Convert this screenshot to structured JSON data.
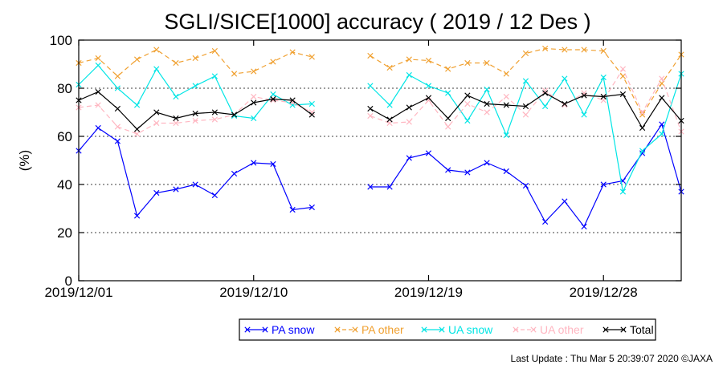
{
  "chart_data": {
    "type": "line",
    "title": "SGLI/SICE[1000] accuracy ( 2019 / 12 Des )",
    "ylabel": "(%)",
    "xlabel": "",
    "ylim": [
      0,
      100
    ],
    "yticks": [
      "0",
      "20",
      "40",
      "60",
      "80",
      "100"
    ],
    "xlim": [
      1,
      32
    ],
    "xticks": [
      {
        "day": 1,
        "label": "2019/12/01"
      },
      {
        "day": 10,
        "label": "2019/12/10"
      },
      {
        "day": 19,
        "label": "2019/12/19"
      },
      {
        "day": 28,
        "label": "2019/12/28"
      }
    ],
    "grid": "horizontal-dotted",
    "legend_position": "bottom",
    "footer": "Last Update : Thu Mar  5 20:39:07 2020  ©JAXA",
    "x": [
      1,
      2,
      3,
      4,
      5,
      6,
      7,
      8,
      9,
      10,
      11,
      12,
      13,
      14,
      15,
      16,
      17,
      18,
      19,
      20,
      21,
      22,
      23,
      24,
      25,
      26,
      27,
      28,
      29,
      30,
      31,
      32
    ],
    "series": [
      {
        "name": "PA snow",
        "color": "#0000ff",
        "dashed": false,
        "values": [
          54,
          63.5,
          58,
          27,
          36.5,
          38,
          40,
          35.5,
          44.5,
          49,
          48.5,
          29.5,
          30.5,
          null,
          null,
          39,
          39,
          51,
          53,
          46,
          45,
          49,
          45.5,
          39.5,
          24.5,
          33,
          22.5,
          40,
          41.5,
          53,
          65,
          37
        ]
      },
      {
        "name": "PA other",
        "color": "#f0a030",
        "dashed": true,
        "values": [
          90.5,
          92.5,
          85,
          92,
          96,
          90.5,
          92.5,
          95.5,
          86,
          87,
          91,
          95,
          93,
          null,
          null,
          93.5,
          88.5,
          92,
          91.5,
          88,
          90.5,
          90.5,
          86,
          94.5,
          96.5,
          96,
          96,
          95.5,
          85,
          69,
          82,
          94
        ]
      },
      {
        "name": "UA snow",
        "color": "#00e5e5",
        "dashed": false,
        "values": [
          81.5,
          89.5,
          80,
          73,
          88,
          76.5,
          81,
          85,
          68.5,
          67.5,
          77.5,
          73,
          73.5,
          null,
          null,
          81,
          73,
          85.5,
          81,
          78,
          66.5,
          79.5,
          60.5,
          83,
          72.5,
          84,
          69,
          84.5,
          37,
          54,
          61,
          86
        ]
      },
      {
        "name": "UA other",
        "color": "#ffb6c1",
        "dashed": true,
        "values": [
          72,
          73,
          64,
          61,
          65.5,
          65.5,
          66.5,
          67,
          69,
          76.5,
          75,
          74,
          70,
          null,
          null,
          68.5,
          65.5,
          66,
          75,
          64,
          73.5,
          70,
          76.5,
          69,
          79,
          73,
          78,
          75,
          88,
          70,
          84,
          62
        ]
      },
      {
        "name": "Total",
        "color": "#000000",
        "dashed": false,
        "values": [
          75,
          78.5,
          71.5,
          63,
          70,
          67.5,
          69.5,
          70,
          69,
          74,
          75.5,
          75,
          69,
          null,
          null,
          71.5,
          67,
          72,
          76,
          67.5,
          77,
          73.5,
          73,
          72.5,
          78,
          73.5,
          77,
          76.5,
          77.5,
          63.5,
          76,
          66.5
        ]
      }
    ]
  }
}
